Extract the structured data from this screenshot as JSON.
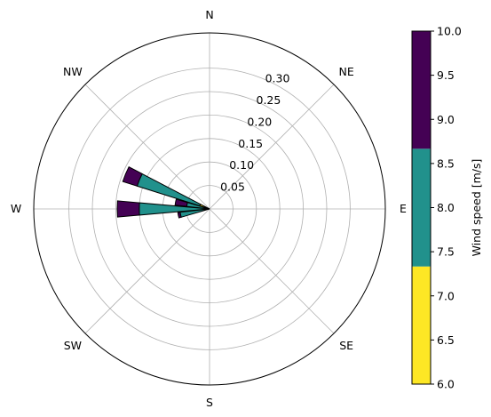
{
  "chart_data": {
    "type": "windrose",
    "title": "",
    "directions": [
      "N",
      "NE",
      "E",
      "SE",
      "S",
      "SW",
      "W",
      "NW"
    ],
    "radial_ticks": [
      "0.05",
      "0.10",
      "0.15",
      "0.20",
      "0.25",
      "0.30"
    ],
    "radial_tick_values": [
      0.05,
      0.1,
      0.15,
      0.2,
      0.25,
      0.3
    ],
    "rmax": 0.375,
    "grid": true,
    "colorbar": {
      "label": "Wind speed [m/s]",
      "min": 6.0,
      "max": 10.0,
      "ticks": [
        "6.0",
        "6.5",
        "7.0",
        "7.5",
        "8.0",
        "8.5",
        "9.0",
        "9.5",
        "10.0"
      ],
      "tick_values": [
        6.0,
        6.5,
        7.0,
        7.5,
        8.0,
        8.5,
        9.0,
        9.5,
        10.0
      ],
      "bins": [
        {
          "from": 6.0,
          "to": 7.333,
          "color": "#fde725"
        },
        {
          "from": 7.333,
          "to": 8.667,
          "color": "#21918c"
        },
        {
          "from": 8.667,
          "to": 10.0,
          "color": "#440154"
        }
      ]
    },
    "bar_width_deg": 10,
    "series": [
      {
        "direction_deg": 292.5,
        "segments": [
          0.022,
          0.14,
          0.032
        ]
      },
      {
        "direction_deg": 281.25,
        "segments": [
          0.012,
          0.037,
          0.025
        ]
      },
      {
        "direction_deg": 270,
        "segments": [
          0.0,
          0.15,
          0.047
        ]
      },
      {
        "direction_deg": 258.75,
        "segments": [
          0.0,
          0.063,
          0.005
        ]
      }
    ]
  }
}
